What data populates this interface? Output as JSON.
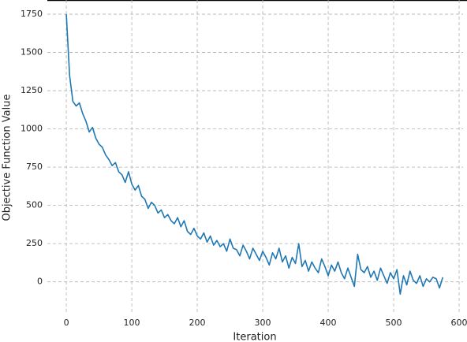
{
  "chart_data": {
    "type": "line",
    "x_label": "Iteration",
    "y_label": "Objective Function Value",
    "x": [
      0,
      5,
      10,
      15,
      20,
      25,
      30,
      35,
      40,
      45,
      50,
      55,
      60,
      65,
      70,
      75,
      80,
      85,
      90,
      95,
      100,
      105,
      110,
      115,
      120,
      125,
      130,
      135,
      140,
      145,
      150,
      155,
      160,
      165,
      170,
      175,
      180,
      185,
      190,
      195,
      200,
      205,
      210,
      215,
      220,
      225,
      230,
      235,
      240,
      245,
      250,
      255,
      260,
      265,
      270,
      275,
      280,
      285,
      290,
      295,
      300,
      305,
      310,
      315,
      320,
      325,
      330,
      335,
      340,
      345,
      350,
      355,
      360,
      365,
      370,
      375,
      380,
      385,
      390,
      395,
      400,
      405,
      410,
      415,
      420,
      425,
      430,
      435,
      440,
      445,
      450,
      455,
      460,
      465,
      470,
      475,
      480,
      485,
      490,
      495,
      500,
      505,
      510,
      515,
      520,
      525,
      530,
      535,
      540,
      545,
      550,
      555,
      560,
      565,
      570,
      575
    ],
    "series": [
      {
        "color": "#1f77b4",
        "values": [
          1750,
          1350,
          1180,
          1150,
          1170,
          1100,
          1050,
          980,
          1010,
          940,
          900,
          880,
          830,
          800,
          760,
          780,
          720,
          700,
          650,
          720,
          640,
          600,
          630,
          560,
          540,
          480,
          520,
          500,
          450,
          470,
          420,
          440,
          400,
          380,
          420,
          360,
          400,
          330,
          310,
          350,
          300,
          280,
          320,
          260,
          300,
          240,
          270,
          230,
          250,
          200,
          280,
          220,
          210,
          170,
          240,
          200,
          150,
          220,
          180,
          140,
          200,
          160,
          110,
          190,
          150,
          220,
          130,
          170,
          90,
          160,
          120,
          250,
          100,
          140,
          70,
          130,
          90,
          60,
          150,
          100,
          40,
          110,
          70,
          130,
          60,
          20,
          90,
          30,
          -30,
          180,
          80,
          60,
          100,
          30,
          70,
          10,
          90,
          40,
          -10,
          60,
          20,
          80,
          -80,
          40,
          -20,
          70,
          10,
          -10,
          40,
          -30,
          20,
          0,
          30,
          20,
          -40,
          30
        ]
      }
    ],
    "xlim": [
      -29,
      606
    ],
    "ylim": [
      -213,
      1843
    ],
    "xticks": [
      0,
      100,
      200,
      300,
      400,
      500,
      600
    ],
    "yticks": [
      0,
      250,
      500,
      750,
      1000,
      1250,
      1500,
      1750
    ],
    "grid": true
  }
}
